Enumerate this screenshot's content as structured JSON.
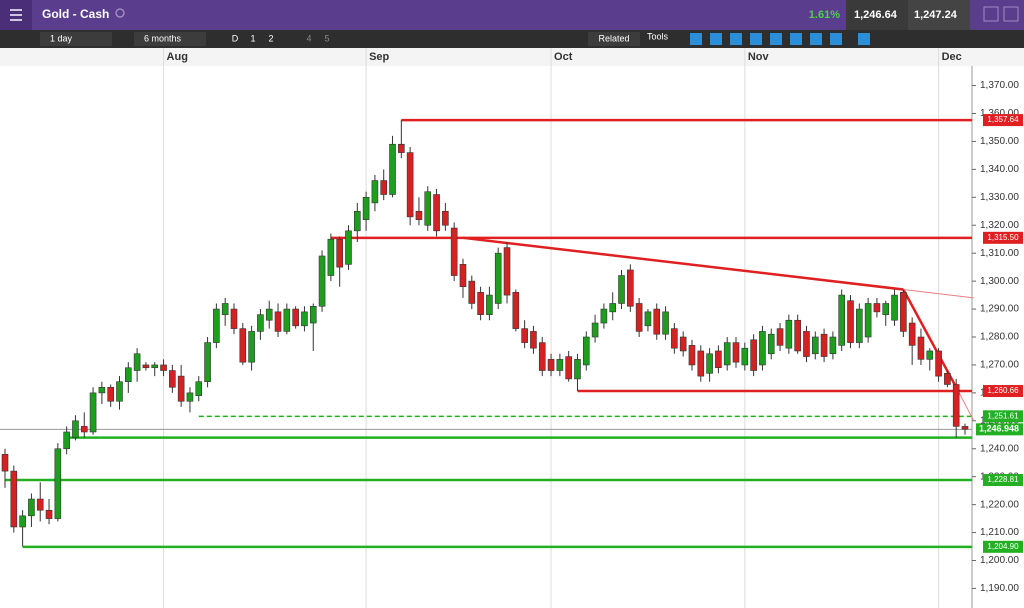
{
  "header": {
    "title": "Gold - Cash",
    "change": "1.61%",
    "sell": "1,246.64",
    "buy": "1,247.24"
  },
  "toolbar": {
    "interval": "1 day",
    "range": "6 months",
    "buttons": [
      "D",
      "1",
      "2",
      "4",
      "5"
    ],
    "related": "Related",
    "tools": "Tools"
  },
  "chart_data": {
    "type": "candlestick",
    "categories": [
      null,
      null,
      null,
      null,
      null,
      null,
      null,
      null,
      null,
      null,
      null,
      null,
      null,
      null,
      null,
      null,
      null,
      null,
      "Aug",
      null,
      null,
      null,
      null,
      null,
      null,
      null,
      null,
      null,
      null,
      null,
      null,
      null,
      null,
      null,
      null,
      null,
      null,
      null,
      null,
      null,
      null,
      "Sep",
      null,
      null,
      null,
      null,
      null,
      null,
      null,
      null,
      null,
      null,
      null,
      null,
      null,
      null,
      null,
      null,
      null,
      null,
      null,
      null,
      "Oct",
      null,
      null,
      null,
      null,
      null,
      null,
      null,
      null,
      null,
      null,
      null,
      null,
      null,
      null,
      null,
      null,
      null,
      null,
      null,
      null,
      null,
      "Nov",
      null,
      null,
      null,
      null,
      null,
      null,
      null,
      null,
      null,
      null,
      null,
      null,
      null,
      null,
      null,
      null,
      null,
      null,
      null,
      null,
      null,
      "Dec",
      null,
      null,
      null
    ],
    "ohlc": [
      [
        1238,
        1240,
        1226,
        1232
      ],
      [
        1232,
        1234,
        1210,
        1212
      ],
      [
        1212,
        1218,
        1205,
        1216
      ],
      [
        1216,
        1224,
        1212,
        1222
      ],
      [
        1222,
        1228,
        1214,
        1218
      ],
      [
        1218,
        1222,
        1213,
        1215
      ],
      [
        1215,
        1242,
        1214,
        1240
      ],
      [
        1240,
        1248,
        1238,
        1246
      ],
      [
        1244,
        1252,
        1243,
        1250
      ],
      [
        1248,
        1253,
        1244,
        1246
      ],
      [
        1246,
        1262,
        1245,
        1260
      ],
      [
        1260,
        1264,
        1256,
        1262
      ],
      [
        1262,
        1263,
        1255,
        1257
      ],
      [
        1257,
        1266,
        1254,
        1264
      ],
      [
        1264,
        1271,
        1260,
        1269
      ],
      [
        1268,
        1276,
        1264,
        1274
      ],
      [
        1270,
        1271,
        1268,
        1269
      ],
      [
        1269,
        1271,
        1266,
        1270
      ],
      [
        1270,
        1272,
        1266,
        1268
      ],
      [
        1268,
        1270,
        1260,
        1262
      ],
      [
        1266,
        1270,
        1255,
        1257
      ],
      [
        1257,
        1262,
        1253,
        1260
      ],
      [
        1259,
        1266,
        1257,
        1264
      ],
      [
        1264,
        1280,
        1262,
        1278
      ],
      [
        1278,
        1292,
        1276,
        1290
      ],
      [
        1288,
        1294,
        1284,
        1292
      ],
      [
        1290,
        1292,
        1281,
        1283
      ],
      [
        1283,
        1285,
        1270,
        1271
      ],
      [
        1271,
        1284,
        1268,
        1282
      ],
      [
        1282,
        1290,
        1279,
        1288
      ],
      [
        1286,
        1293,
        1283,
        1290
      ],
      [
        1289,
        1292,
        1280,
        1282
      ],
      [
        1282,
        1292,
        1281,
        1290
      ],
      [
        1290,
        1291,
        1283,
        1284
      ],
      [
        1284,
        1291,
        1282,
        1289
      ],
      [
        1285,
        1292,
        1275,
        1291
      ],
      [
        1291,
        1311,
        1289,
        1309
      ],
      [
        1302,
        1317,
        1300,
        1315
      ],
      [
        1315,
        1316,
        1298,
        1305
      ],
      [
        1306,
        1320,
        1304,
        1318
      ],
      [
        1318,
        1328,
        1314,
        1325
      ],
      [
        1322,
        1332,
        1318,
        1330
      ],
      [
        1328,
        1338,
        1325,
        1336
      ],
      [
        1336,
        1340,
        1329,
        1331
      ],
      [
        1331,
        1352,
        1330,
        1349
      ],
      [
        1349,
        1357.64,
        1344,
        1346
      ],
      [
        1346,
        1348,
        1320,
        1323
      ],
      [
        1325,
        1330,
        1320,
        1322
      ],
      [
        1320,
        1334,
        1318,
        1332
      ],
      [
        1331,
        1333,
        1316,
        1318
      ],
      [
        1325,
        1328,
        1318,
        1320
      ],
      [
        1319,
        1321,
        1300,
        1302
      ],
      [
        1306,
        1308,
        1294,
        1298
      ],
      [
        1300,
        1302,
        1290,
        1292
      ],
      [
        1296,
        1298,
        1286,
        1288
      ],
      [
        1288,
        1298,
        1286,
        1295
      ],
      [
        1292,
        1312,
        1290,
        1310
      ],
      [
        1312,
        1314,
        1292,
        1295
      ],
      [
        1296,
        1297,
        1282,
        1283
      ],
      [
        1283,
        1286,
        1276,
        1278
      ],
      [
        1282,
        1284,
        1274,
        1276
      ],
      [
        1278,
        1280,
        1266,
        1268
      ],
      [
        1272,
        1274,
        1266,
        1268
      ],
      [
        1268,
        1274,
        1266,
        1272
      ],
      [
        1273,
        1275,
        1264,
        1265
      ],
      [
        1265,
        1274,
        1260.66,
        1272
      ],
      [
        1270,
        1282,
        1268,
        1280
      ],
      [
        1280,
        1288,
        1278,
        1285
      ],
      [
        1285,
        1292,
        1283,
        1290
      ],
      [
        1289,
        1296,
        1286,
        1292
      ],
      [
        1292,
        1304,
        1290,
        1302
      ],
      [
        1304,
        1306,
        1289,
        1291
      ],
      [
        1292,
        1294,
        1280,
        1282
      ],
      [
        1284,
        1290,
        1282,
        1289
      ],
      [
        1290,
        1292,
        1279,
        1281
      ],
      [
        1281,
        1291,
        1279,
        1289
      ],
      [
        1283,
        1285,
        1274,
        1276
      ],
      [
        1280,
        1282,
        1273,
        1275
      ],
      [
        1277,
        1279,
        1268,
        1270
      ],
      [
        1275,
        1277,
        1264,
        1266
      ],
      [
        1267,
        1276,
        1264,
        1274
      ],
      [
        1275,
        1277,
        1267,
        1269
      ],
      [
        1270,
        1280,
        1268,
        1278
      ],
      [
        1278,
        1280,
        1269,
        1271
      ],
      [
        1270,
        1278,
        1268,
        1276
      ],
      [
        1279,
        1281,
        1266,
        1268
      ],
      [
        1270,
        1284,
        1268,
        1282
      ],
      [
        1274,
        1283,
        1272,
        1281
      ],
      [
        1283,
        1285,
        1275,
        1277
      ],
      [
        1276,
        1288,
        1274,
        1286
      ],
      [
        1286,
        1288,
        1274,
        1275
      ],
      [
        1282,
        1284,
        1271,
        1273
      ],
      [
        1274,
        1282,
        1272,
        1280
      ],
      [
        1281,
        1283,
        1271,
        1273
      ],
      [
        1274,
        1282,
        1272,
        1280
      ],
      [
        1277,
        1297,
        1275,
        1295
      ],
      [
        1293,
        1295,
        1276,
        1278
      ],
      [
        1278,
        1292,
        1276,
        1290
      ],
      [
        1280,
        1294,
        1278,
        1292
      ],
      [
        1292,
        1294,
        1287,
        1289
      ],
      [
        1288,
        1293,
        1284,
        1292
      ],
      [
        1286,
        1297,
        1284,
        1295
      ],
      [
        1296,
        1297,
        1280,
        1282
      ],
      [
        1285,
        1287,
        1270,
        1277
      ],
      [
        1280,
        1283,
        1270,
        1272
      ],
      [
        1272,
        1276,
        1268,
        1275
      ],
      [
        1275,
        1276,
        1264,
        1266
      ],
      [
        1267,
        1268,
        1262,
        1263
      ],
      [
        1263,
        1265,
        1244,
        1248
      ],
      [
        1248,
        1249,
        1245,
        1247
      ]
    ],
    "up_color": "#1e9e1e",
    "down_color": "#d42222",
    "ylim": [
      1183,
      1377
    ],
    "yticks": [
      {
        "value": 1190,
        "label": "1,190.00"
      },
      {
        "value": 1200,
        "label": "1,200.00"
      },
      {
        "value": 1210,
        "label": "1,210.00"
      },
      {
        "value": 1220,
        "label": "1,220.00"
      },
      {
        "value": 1230,
        "label": "1,230.00"
      },
      {
        "value": 1240,
        "label": "1,240.00"
      },
      {
        "value": 1250,
        "label": "1,250.00"
      },
      {
        "value": 1260,
        "label": "1,260.00"
      },
      {
        "value": 1270,
        "label": "1,270.00"
      },
      {
        "value": 1280,
        "label": "1,280.00"
      },
      {
        "value": 1290,
        "label": "1,290.00"
      },
      {
        "value": 1300,
        "label": "1,300.00"
      },
      {
        "value": 1310,
        "label": "1,310.00"
      },
      {
        "value": 1320,
        "label": "1,320.00"
      },
      {
        "value": 1330,
        "label": "1,330.00"
      },
      {
        "value": 1340,
        "label": "1,340.00"
      },
      {
        "value": 1350,
        "label": "1,350.00"
      },
      {
        "value": 1360,
        "label": "1,360.00"
      },
      {
        "value": 1370,
        "label": "1,370.00"
      }
    ],
    "levels": [
      {
        "value": 1357.64,
        "label": "1,357.64",
        "color": "#e02020",
        "from": 45
      },
      {
        "value": 1315.5,
        "label": "1,315.50",
        "color": "#e02020",
        "from": 37
      },
      {
        "value": 1260.66,
        "label": "1,260.66",
        "color": "#e02020",
        "from": 65
      },
      {
        "value": 1251.61,
        "label": "1,251.61",
        "color": "#22b022",
        "from": 22,
        "dashed": true
      },
      {
        "value": 1244,
        "color": "#22b022",
        "from": 7
      },
      {
        "value": 1228.81,
        "label": "1,228.81",
        "color": "#22b022",
        "from": 0
      },
      {
        "value": 1204.9,
        "label": "1,204.90",
        "color": "#22b022",
        "from": 2
      }
    ],
    "trendlines": [
      {
        "points": [
          [
            52,
            1315.5
          ],
          [
            102,
            1297
          ]
        ],
        "color": "#e02020",
        "width": 2.5
      },
      {
        "points": [
          [
            102,
            1297
          ],
          [
            108,
            1262
          ]
        ],
        "color": "#e02020",
        "width": 2.5
      },
      {
        "points": [
          [
            102,
            1297
          ],
          [
            110,
            1294
          ]
        ],
        "color": "#e88080",
        "width": 1
      },
      {
        "points": [
          [
            108,
            1262
          ],
          [
            110,
            1250
          ]
        ],
        "color": "#e88080",
        "width": 1
      }
    ],
    "current": {
      "value": 1246.948,
      "label": "1,246.948",
      "color": "#22b022"
    }
  }
}
